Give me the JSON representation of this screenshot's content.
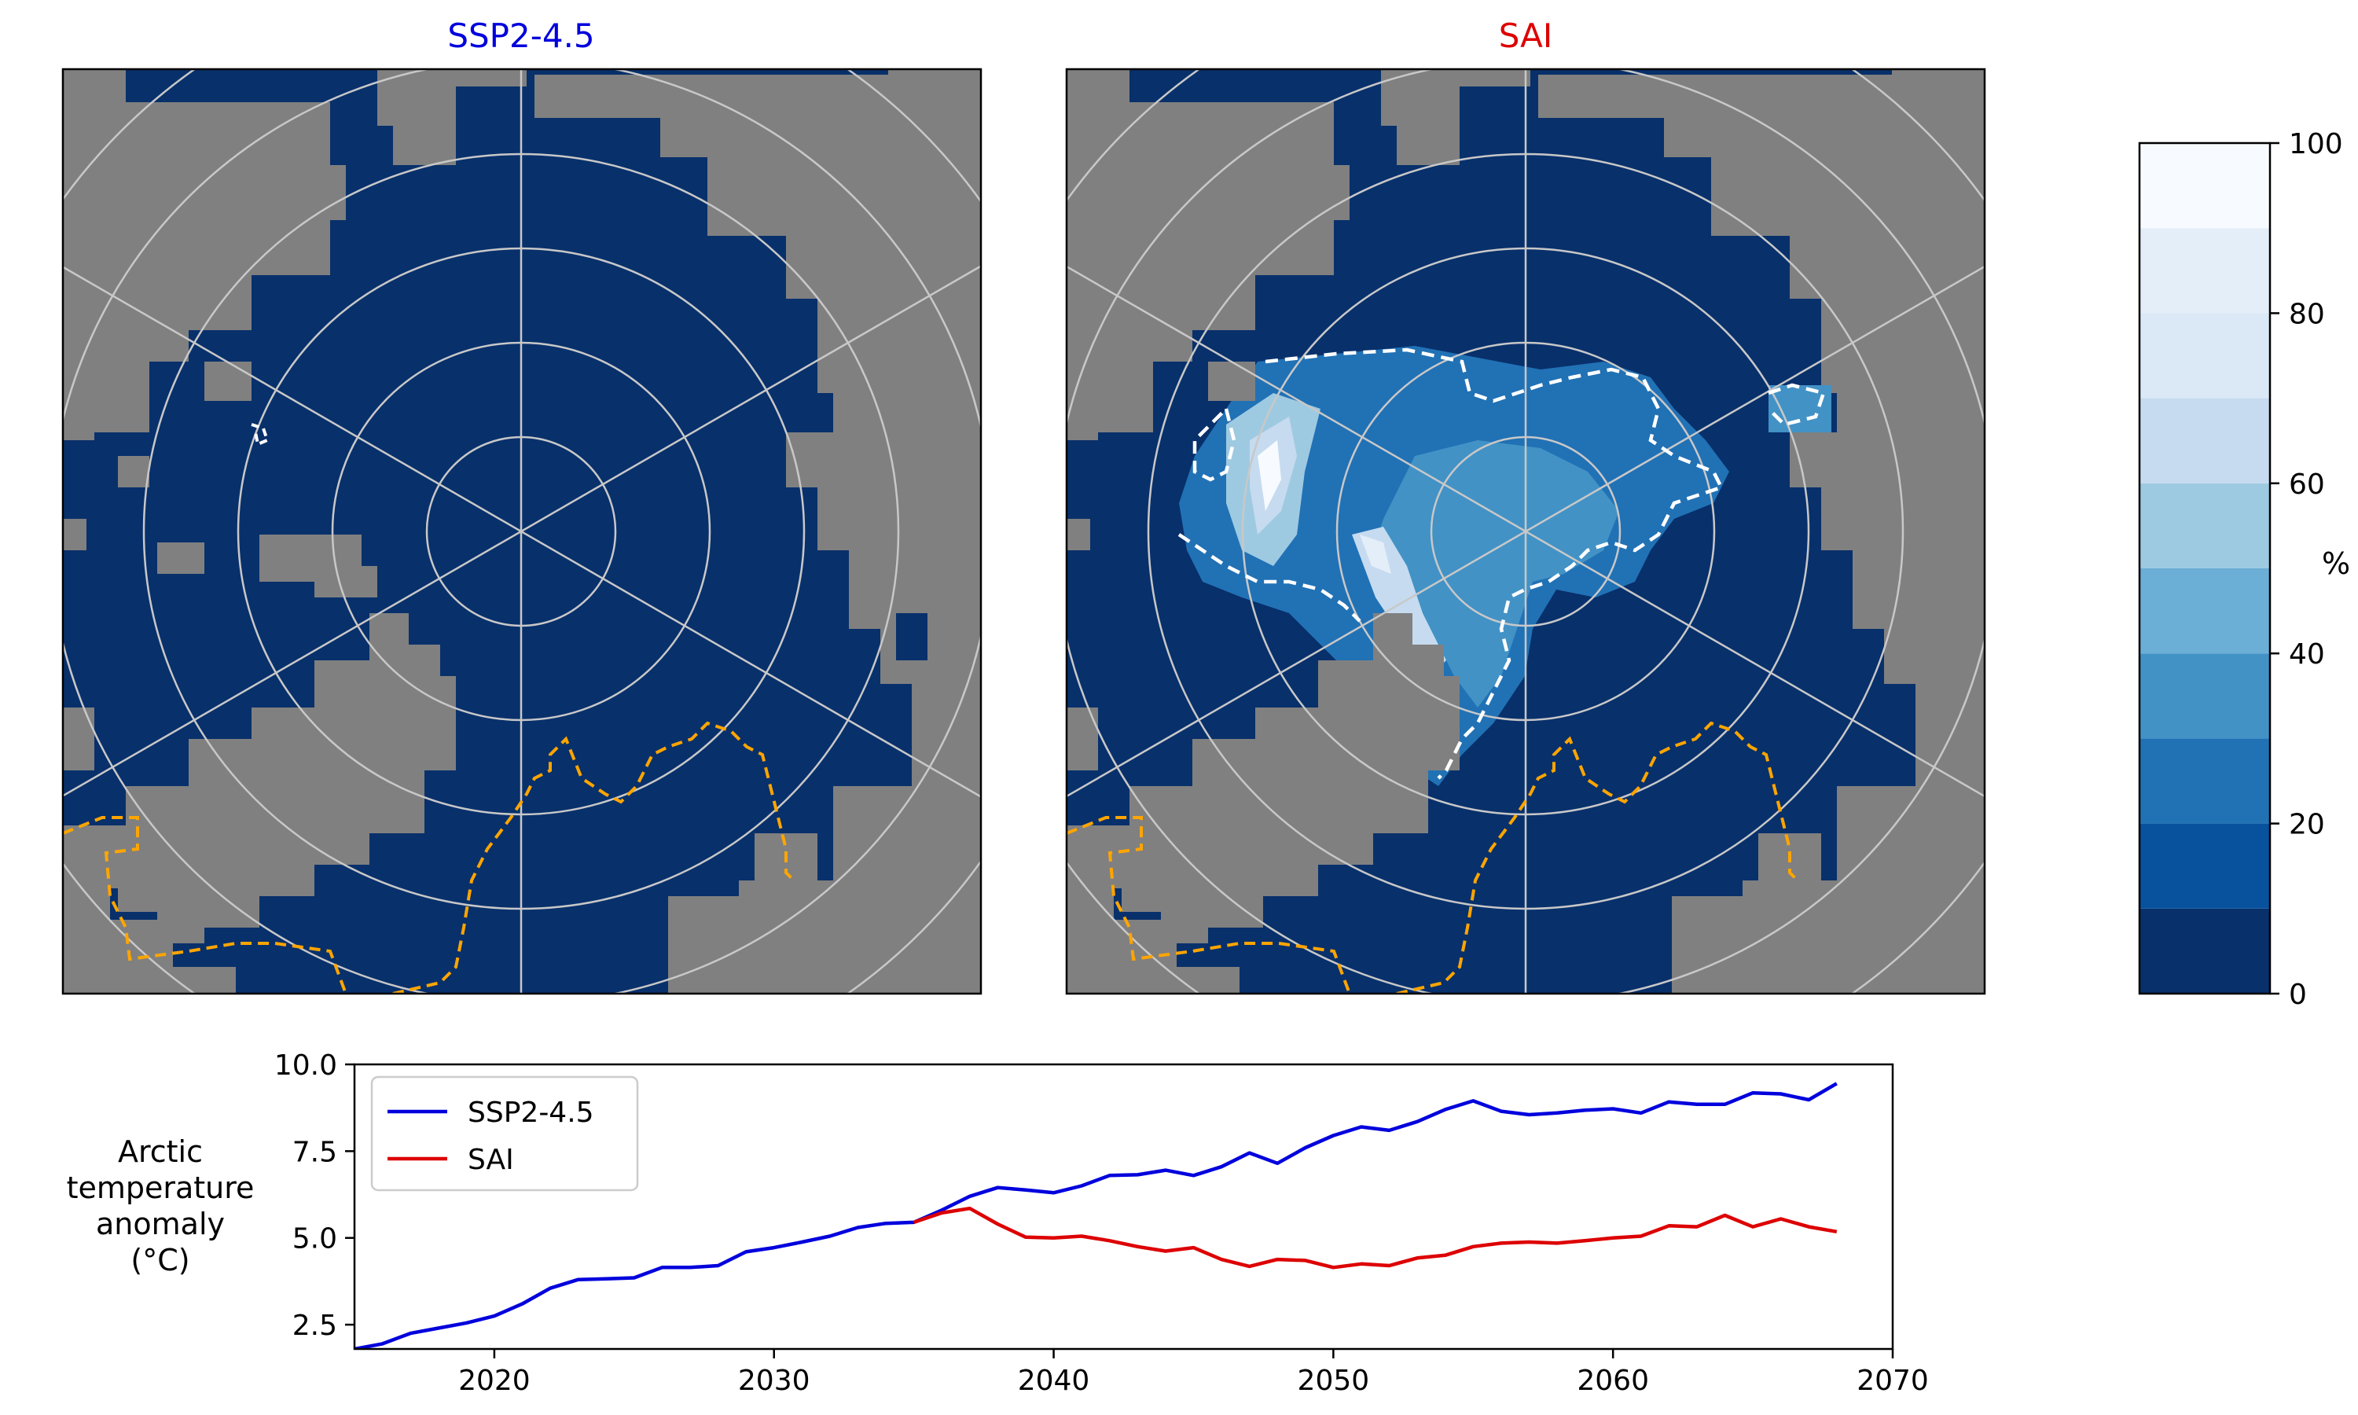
{
  "maps": [
    {
      "title": "SSP2-4.5",
      "title_color": "#0000dd"
    },
    {
      "title": "SAI",
      "title_color": "#dd0000"
    }
  ],
  "colorbar": {
    "unit": "%",
    "ticks": [
      "0",
      "20",
      "40",
      "60",
      "80",
      "100"
    ],
    "levels": [
      0,
      10,
      20,
      30,
      40,
      50,
      60,
      70,
      80,
      90,
      100
    ],
    "colors": [
      "#08306b",
      "#08519c",
      "#2171b5",
      "#4292c6",
      "#6baed6",
      "#9ecae1",
      "#c6dbef",
      "#dbe9f6",
      "#e3eef9",
      "#f7fbff"
    ]
  },
  "colors": {
    "land": "#808080",
    "ocean_ice": "#08306b",
    "grid": "#c8c8c8",
    "ssp_contour": "#ffa500",
    "sai_contour": "#ffffff"
  },
  "chart_data": {
    "type": "line",
    "ylabel": "Arctic\ntemperature\nanomaly\n(°C)",
    "xlabel": "",
    "xlim": [
      2015,
      2070
    ],
    "ylim": [
      1.8,
      10.0
    ],
    "x_ticks": [
      "2020",
      "2030",
      "2040",
      "2050",
      "2060",
      "2070"
    ],
    "y_ticks": [
      "2.5",
      "5.0",
      "7.5",
      "10.0"
    ],
    "legend_position": "top-left",
    "series": [
      {
        "name": "SSP2-4.5",
        "color": "#0000dd",
        "x": [
          2015,
          2016,
          2017,
          2018,
          2019,
          2020,
          2021,
          2022,
          2023,
          2024,
          2025,
          2026,
          2027,
          2028,
          2029,
          2030,
          2031,
          2032,
          2033,
          2034,
          2035,
          2036,
          2037,
          2038,
          2039,
          2040,
          2041,
          2042,
          2043,
          2044,
          2045,
          2046,
          2047,
          2048,
          2049,
          2050,
          2051,
          2052,
          2053,
          2054,
          2055,
          2056,
          2057,
          2058,
          2059,
          2060,
          2061,
          2062,
          2063,
          2064,
          2065,
          2066,
          2067,
          2068
        ],
        "values": [
          1.8,
          1.95,
          2.25,
          2.4,
          2.55,
          2.75,
          3.1,
          3.55,
          3.8,
          3.82,
          3.85,
          4.15,
          4.15,
          4.2,
          4.6,
          4.72,
          4.88,
          5.05,
          5.3,
          5.42,
          5.45,
          5.8,
          6.2,
          6.45,
          6.38,
          6.3,
          6.5,
          6.8,
          6.82,
          6.95,
          6.8,
          7.05,
          7.45,
          7.15,
          7.6,
          7.95,
          8.2,
          8.1,
          8.35,
          8.7,
          8.95,
          8.65,
          8.55,
          8.6,
          8.68,
          8.72,
          8.6,
          8.92,
          8.85,
          8.85,
          9.18,
          9.15,
          8.98,
          9.45
        ]
      },
      {
        "name": "SAI",
        "color": "#dd0000",
        "x": [
          2035,
          2036,
          2037,
          2038,
          2039,
          2040,
          2041,
          2042,
          2043,
          2044,
          2045,
          2046,
          2047,
          2048,
          2049,
          2050,
          2051,
          2052,
          2053,
          2054,
          2055,
          2056,
          2057,
          2058,
          2059,
          2060,
          2061,
          2062,
          2063,
          2064,
          2065,
          2066,
          2067,
          2068
        ],
        "values": [
          5.45,
          5.72,
          5.85,
          5.4,
          5.02,
          5.0,
          5.05,
          4.92,
          4.75,
          4.62,
          4.72,
          4.38,
          4.18,
          4.38,
          4.35,
          4.15,
          4.25,
          4.2,
          4.42,
          4.5,
          4.75,
          4.85,
          4.88,
          4.85,
          4.92,
          5.0,
          5.05,
          5.35,
          5.32,
          5.65,
          5.32,
          5.55,
          5.32,
          5.18
        ]
      }
    ]
  }
}
